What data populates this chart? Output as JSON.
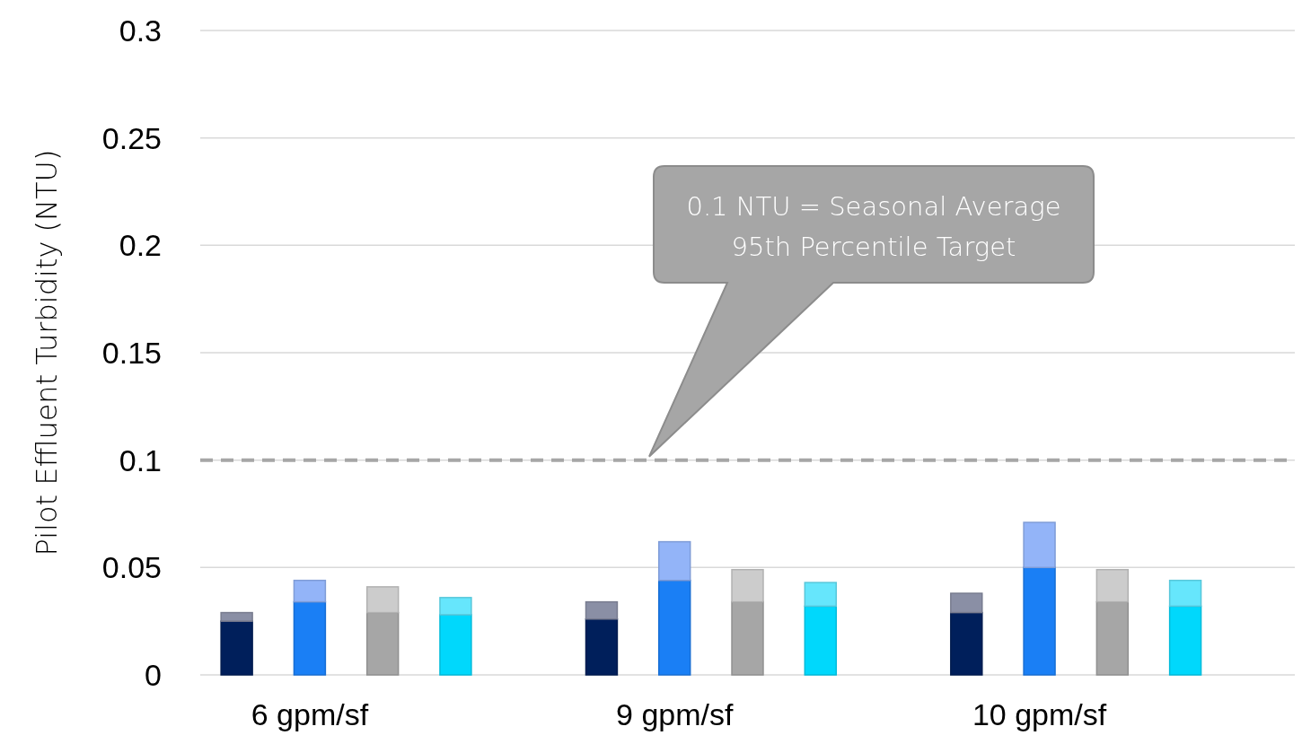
{
  "chart_data": {
    "type": "bar",
    "stacked": true,
    "categories": [
      null,
      "6 gpm/sf",
      null,
      null,
      null,
      null,
      "9 gpm/sf",
      null,
      null,
      null,
      null,
      "10 gpm/sf",
      null,
      null,
      null
    ],
    "ylabel": "Pilot Effluent Turbidity (NTU)",
    "ylim": [
      0,
      0.3
    ],
    "yticks": [
      0,
      0.05,
      0.1,
      0.15,
      0.2,
      0.25,
      0.3
    ],
    "grid": "y",
    "series": [
      {
        "colors": [
          "#001f5b",
          "#1a7ff5",
          "#a6a6a6",
          "#00d8fc",
          null,
          "#001f5b",
          "#1a7ff5",
          "#a6a6a6",
          "#00d8fc",
          null,
          "#001f5b",
          "#1a7ff5",
          "#a6a6a6",
          "#00d8fc",
          null
        ],
        "values": [
          0.025,
          0.034,
          0.029,
          0.028,
          null,
          0.026,
          0.044,
          0.034,
          0.032,
          null,
          0.029,
          0.05,
          0.034,
          0.032,
          null
        ]
      },
      {
        "colors": [
          "#8a8fa5",
          "#93b4f8",
          "#cccccc",
          "#66e6fc",
          null,
          "#8a8fa5",
          "#93b4f8",
          "#cccccc",
          "#66e6fc",
          null,
          "#8a8fa5",
          "#93b4f8",
          "#cccccc",
          "#66e6fc",
          null
        ],
        "values": [
          0.004,
          0.01,
          0.012,
          0.008,
          null,
          0.008,
          0.018,
          0.015,
          0.011,
          null,
          0.009,
          0.021,
          0.015,
          0.012,
          null
        ]
      }
    ],
    "annotations": [
      "0.1 NTU = Seasonal Average 95th Percentile Target"
    ],
    "ref_lines": [
      {
        "axis": "y",
        "value": 0.1,
        "color": "#a6a6a6",
        "line_style": "dashed"
      }
    ]
  }
}
